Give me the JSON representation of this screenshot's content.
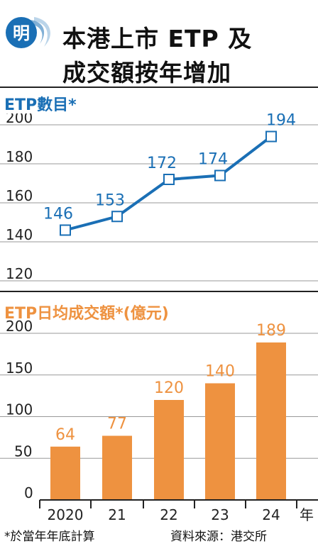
{
  "header": {
    "logo_char": "明",
    "title_line1": "本港上市 ETP 及",
    "title_line2": "成交額按年增加"
  },
  "colors": {
    "blue": "#1a6fb5",
    "orange": "#ee9240",
    "grid": "#999999"
  },
  "chart_data": [
    {
      "type": "line",
      "title": "ETP數目*",
      "x": [
        "2020",
        "21",
        "22",
        "23",
        "24"
      ],
      "values": [
        146,
        153,
        172,
        174,
        194
      ],
      "ylim": [
        120,
        200
      ],
      "yticks": [
        120,
        140,
        160,
        180,
        200
      ],
      "grid": true
    },
    {
      "type": "bar",
      "title": "ETP日均成交額*(億元)",
      "categories": [
        "2020",
        "21",
        "22",
        "23",
        "24"
      ],
      "values": [
        64,
        77,
        120,
        140,
        189
      ],
      "ylim": [
        0,
        200
      ],
      "yticks": [
        0,
        50,
        100,
        150,
        200
      ],
      "grid": true,
      "xunit": "年"
    }
  ],
  "footer": {
    "note": "*於當年年底計算",
    "source": "資料來源：港交所"
  }
}
